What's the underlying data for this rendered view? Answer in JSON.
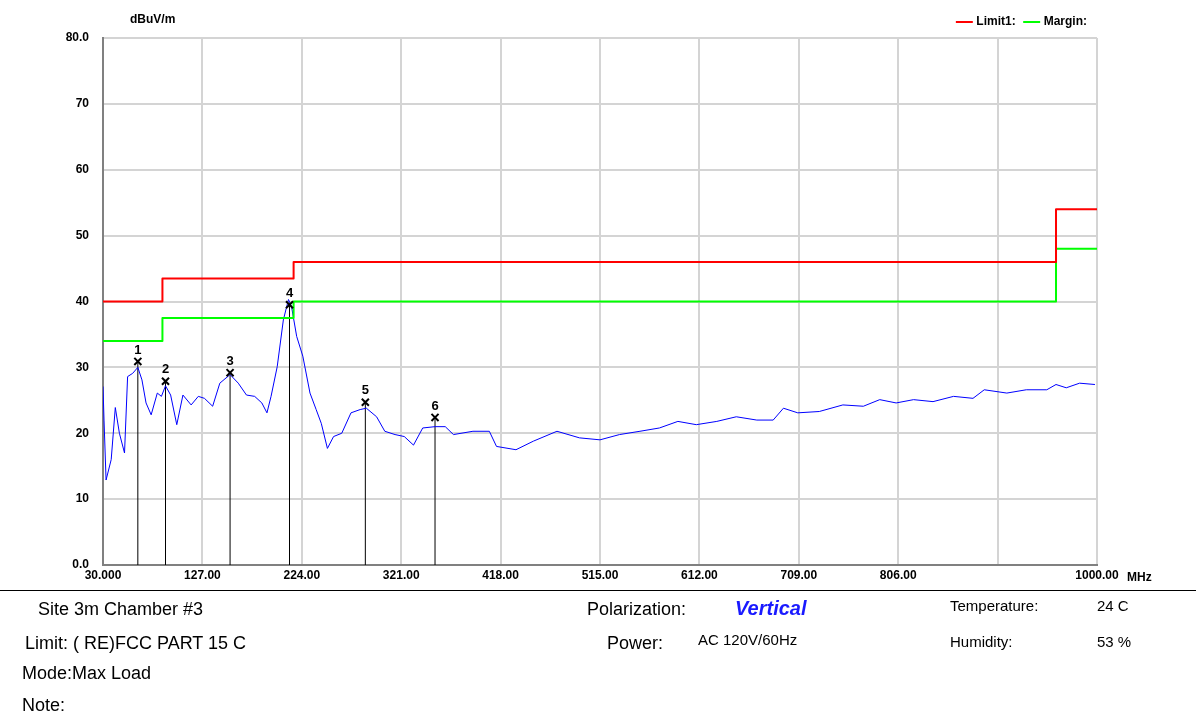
{
  "chart_data": {
    "type": "line",
    "ylabel": "dBuV/m",
    "xlabel": "MHz",
    "xlim": [
      30,
      1000
    ],
    "ylim": [
      0,
      80
    ],
    "xticks": [
      {
        "value": 30,
        "label": "30.000"
      },
      {
        "value": 127,
        "label": "127.00"
      },
      {
        "value": 224,
        "label": "224.00"
      },
      {
        "value": 321,
        "label": "321.00"
      },
      {
        "value": 418,
        "label": "418.00"
      },
      {
        "value": 515,
        "label": "515.00"
      },
      {
        "value": 612,
        "label": "612.00"
      },
      {
        "value": 709,
        "label": "709.00"
      },
      {
        "value": 806,
        "label": "806.00"
      },
      {
        "value": 903,
        "label": null
      },
      {
        "value": 1000,
        "label": "1000.00"
      }
    ],
    "yticks": [
      {
        "value": 0,
        "label": "0.0"
      },
      10,
      20,
      30,
      40,
      50,
      60,
      70,
      {
        "value": 80,
        "label": "80.0"
      }
    ],
    "grid": true,
    "legend": "top right",
    "marker": "none",
    "series": [
      {
        "name": "Limit1:",
        "color": "#ff0000",
        "x": [
          30,
          88,
          88,
          216,
          216,
          960,
          960,
          1000
        ],
        "values": [
          40,
          40,
          43.5,
          43.5,
          46,
          46,
          54,
          54
        ]
      },
      {
        "name": "Margin:",
        "color": "#00ff00",
        "x": [
          30,
          88,
          88,
          216,
          216,
          960,
          960,
          1000
        ],
        "values": [
          34,
          34,
          37.5,
          37.5,
          40,
          40,
          48,
          48
        ]
      },
      {
        "color": "#0000ff",
        "x": [
          30,
          31,
          33,
          38,
          42,
          46,
          51,
          54,
          59,
          64,
          68,
          72,
          77,
          83,
          87,
          91,
          96,
          102,
          108,
          116,
          123,
          129,
          137,
          144,
          154,
          162,
          170,
          178,
          185,
          190,
          194,
          200,
          206,
          211,
          214,
          219,
          225,
          232,
          238,
          243,
          249,
          255,
          263,
          272,
          281,
          287,
          297,
          305,
          315,
          324,
          333,
          342,
          354,
          364,
          372,
          391,
          407,
          414,
          433,
          450,
          473,
          495,
          515,
          534,
          554,
          573,
          591,
          609,
          629,
          648,
          668,
          684,
          694,
          708,
          729,
          752,
          772,
          788,
          804,
          821,
          840,
          860,
          879,
          890,
          912,
          931,
          951,
          960,
          970,
          983,
          998
        ],
        "values": [
          27.1,
          22.0,
          12.9,
          16.0,
          23.9,
          20.0,
          17.0,
          28.6,
          29.1,
          30.0,
          28.1,
          24.6,
          22.8,
          26.1,
          25.6,
          27.2,
          25.8,
          21.3,
          25.8,
          24.3,
          25.6,
          25.3,
          24.1,
          27.6,
          28.9,
          27.6,
          25.8,
          25.6,
          24.6,
          23.1,
          25.6,
          30.1,
          37.2,
          40.3,
          39.2,
          34.7,
          31.7,
          26.1,
          23.6,
          21.5,
          17.7,
          19.5,
          20.0,
          23.1,
          23.6,
          23.8,
          22.5,
          20.3,
          19.8,
          19.5,
          18.2,
          20.8,
          21.0,
          21.0,
          19.8,
          20.3,
          20.3,
          18.0,
          17.5,
          18.8,
          20.3,
          19.3,
          19.0,
          19.8,
          20.3,
          20.8,
          21.8,
          21.3,
          21.8,
          22.5,
          22.0,
          22.0,
          23.8,
          23.1,
          23.3,
          24.3,
          24.1,
          25.1,
          24.6,
          25.1,
          24.8,
          25.6,
          25.3,
          26.6,
          26.1,
          26.6,
          26.6,
          27.4,
          26.9,
          27.6,
          27.4
        ]
      },
      {
        "type": "lollipop",
        "color": "#000000",
        "marker": "cross",
        "x": [
          64,
          91,
          154,
          212,
          286,
          354
        ],
        "values": [
          30.9,
          27.9,
          29.2,
          39.5,
          24.7,
          22.4
        ]
      }
    ],
    "annotations": [
      "Site  3m Chamber #3",
      "Limit: ( RE)FCC PART 15 C",
      "Mode:Max Load",
      "Note:",
      "Polarization:",
      "Vertical",
      "Power:",
      "AC 120V/60Hz",
      "Temperature:",
      "24 C",
      "Humidity:",
      "53 %",
      {
        "text": "1",
        "x": 64,
        "y": 30.9
      },
      {
        "text": "2",
        "x": 91,
        "y": 27.9
      },
      {
        "text": "3",
        "x": 154,
        "y": 29.2
      },
      {
        "text": "4",
        "x": 212,
        "y": 39.5
      },
      {
        "text": "5",
        "x": 286,
        "y": 24.7
      },
      {
        "text": "6",
        "x": 354,
        "y": 22.4
      }
    ]
  }
}
